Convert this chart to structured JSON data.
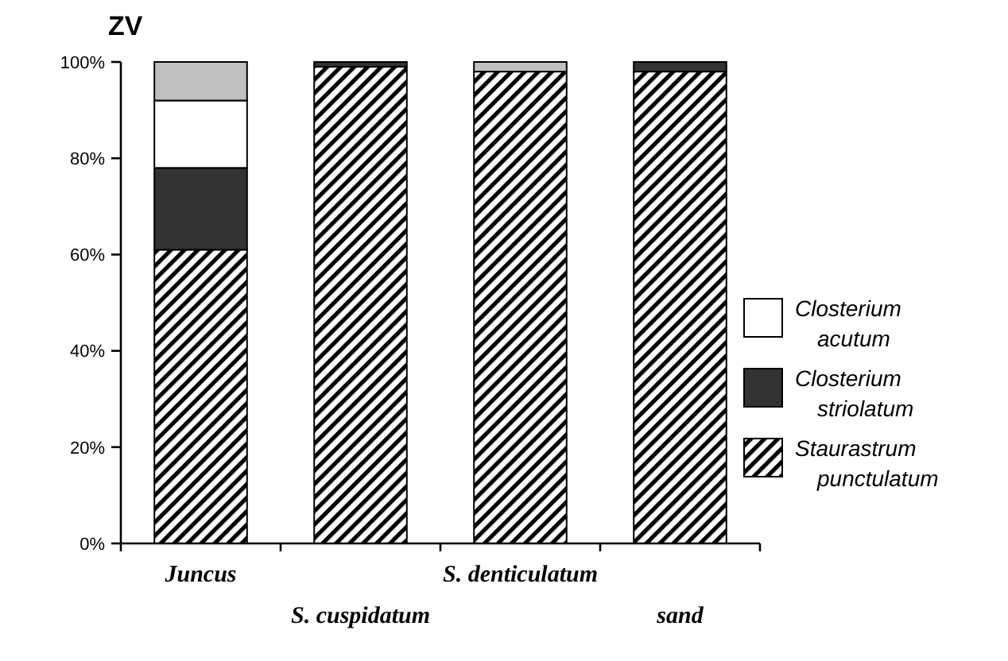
{
  "chart_data": {
    "type": "bar",
    "title": "ZV",
    "stacked": true,
    "categories": [
      "Juncus",
      "S. cuspidatum",
      "S. denticulatum",
      "sand"
    ],
    "series": [
      {
        "name": "Staurastrum punctulatum",
        "color": "#000000",
        "values": [
          61,
          99,
          98,
          98
        ]
      },
      {
        "name": "Closterium striolatum",
        "color": "#333333",
        "values": [
          17,
          1,
          0,
          2
        ]
      },
      {
        "name": "Closterium acutum",
        "color": "#ffffff",
        "values": [
          14,
          0,
          0,
          0
        ]
      },
      {
        "color": "#c0c0c0",
        "values": [
          8,
          0,
          2,
          0
        ]
      }
    ],
    "ylim": [
      0,
      100
    ],
    "yticks": [
      {
        "value": 0,
        "label": "0%"
      },
      {
        "value": 20,
        "label": "20%"
      },
      {
        "value": 40,
        "label": "40%"
      },
      {
        "value": 60,
        "label": "60%"
      },
      {
        "value": 80,
        "label": "80%"
      },
      {
        "value": 100,
        "label": "100%"
      }
    ],
    "legend": "right",
    "grid": false
  }
}
